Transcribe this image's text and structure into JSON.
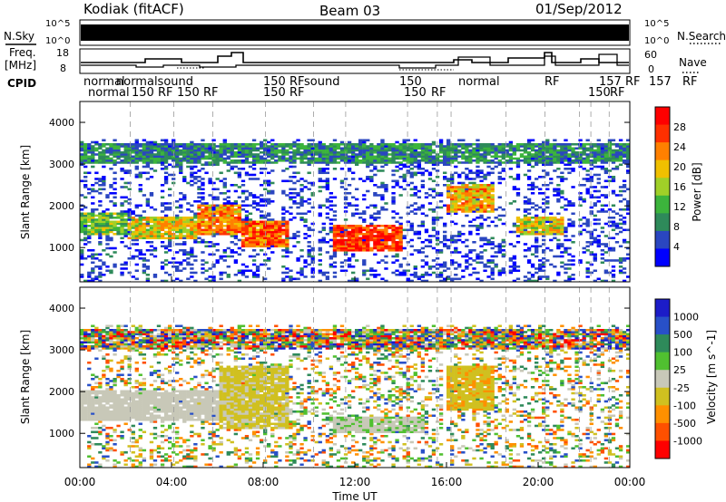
{
  "header": {
    "station": "Kodiak (fitACF)",
    "beam": "Beam 03",
    "date": "01/Sep/2012"
  },
  "side_labels": {
    "nsky": "N.Sky",
    "freq": "Freq.",
    "freq_unit": "[MHz]",
    "cpid": "CPID",
    "nsearch": "N.Search",
    "nave": "Nave"
  },
  "strip_ticks": {
    "nsky_left": [
      "10^5",
      "10^0"
    ],
    "nsky_right": [
      "10^5",
      "10^0"
    ],
    "freq_left": [
      "18",
      "8"
    ],
    "nave_right": [
      "60",
      "0"
    ]
  },
  "cpid_labels": {
    "row1": [
      "normal",
      "normalsound",
      "150 RF",
      "sound",
      "150",
      "normal",
      "RF",
      "157 RF",
      "157",
      "RF"
    ],
    "row2": [
      "normal",
      "normal",
      "150 RF",
      "150 RF",
      "150 RF",
      "150",
      "RF",
      "150",
      "RF"
    ]
  },
  "colors": {
    "power": [
      "#0000ff",
      "#2a46c0",
      "#2e8a5a",
      "#3cb43c",
      "#a0d028",
      "#f0c000",
      "#ff8000",
      "#ff3000",
      "#ff0000"
    ],
    "velocity": [
      "#1c1cc8",
      "#2850c8",
      "#2e8a5a",
      "#50c030",
      "#c8c8b8",
      "#d0c020",
      "#ff9000",
      "#ff5000",
      "#ff0000"
    ],
    "background": "#ffffff",
    "ground_scatter": "#c8c8b8"
  },
  "chart_data": [
    {
      "type": "heatmap",
      "name": "power",
      "xlabel": "Time UT",
      "ylabel": "Slant Range [km]",
      "colorbar_label": "Power [dB]",
      "colorbar_ticks": [
        "4",
        "8",
        "12",
        "16",
        "20",
        "24",
        "28"
      ],
      "xlim": [
        0,
        24
      ],
      "ylim": [
        180,
        4500
      ],
      "yticks": [
        "1000",
        "2000",
        "3000",
        "4000"
      ],
      "xticks": [
        "00:00",
        "04:00",
        "08:00",
        "12:00",
        "16:00",
        "20:00",
        "00:00"
      ],
      "echo_bands": [
        {
          "t": [
            0,
            2
          ],
          "range": [
            1300,
            1800
          ],
          "power": 14
        },
        {
          "t": [
            2,
            5
          ],
          "range": [
            1200,
            1700
          ],
          "power": 18
        },
        {
          "t": [
            5,
            7
          ],
          "range": [
            1300,
            2000
          ],
          "power": 22
        },
        {
          "t": [
            7,
            9
          ],
          "range": [
            1000,
            1600
          ],
          "power": 24
        },
        {
          "t": [
            11,
            14
          ],
          "range": [
            900,
            1500
          ],
          "power": 26
        },
        {
          "t": [
            16,
            18
          ],
          "range": [
            1800,
            2500
          ],
          "power": 20
        },
        {
          "t": [
            19,
            21
          ],
          "range": [
            1300,
            1700
          ],
          "power": 18
        }
      ],
      "far_range_band": {
        "range": [
          3000,
          3500
        ],
        "power": 10
      }
    },
    {
      "type": "heatmap",
      "name": "velocity",
      "xlabel": "Time UT",
      "ylabel": "Slant Range [km]",
      "colorbar_label": "Velocity [m s^-1]",
      "colorbar_ticks": [
        "-1000",
        "-500",
        "-100",
        "-25",
        "25",
        "100",
        "500",
        "1000"
      ],
      "xlim": [
        0,
        24
      ],
      "ylim": [
        180,
        4500
      ],
      "yticks": [
        "1000",
        "2000",
        "3000",
        "4000"
      ],
      "xticks": [
        "00:00",
        "04:00",
        "08:00",
        "12:00",
        "16:00",
        "20:00",
        "00:00"
      ],
      "ground_scatter_region": {
        "t": [
          0,
          7
        ],
        "range": [
          1300,
          2000
        ]
      },
      "echo_bands": [
        {
          "t": [
            6,
            9
          ],
          "range": [
            1100,
            2600
          ],
          "velocity": -200
        },
        {
          "t": [
            11,
            15
          ],
          "range": [
            1000,
            1400
          ],
          "velocity": 60
        },
        {
          "t": [
            16,
            18
          ],
          "range": [
            1500,
            2600
          ],
          "velocity": -300
        }
      ],
      "far_range_band": {
        "range": [
          3000,
          3500
        ],
        "velocity": 0
      }
    }
  ]
}
